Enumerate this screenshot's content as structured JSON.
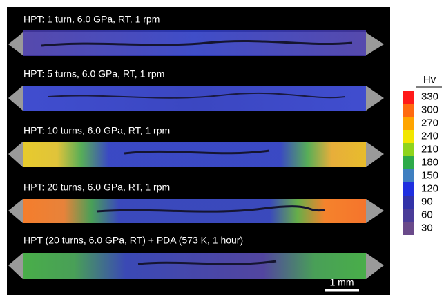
{
  "panels": [
    {
      "label": "HPT: 1 turn, 6.0 GPa, RT, 1 rpm"
    },
    {
      "label": "HPT: 5 turns, 6.0 GPa, RT, 1 rpm"
    },
    {
      "label": "HPT: 10 turns, 6.0 GPa, RT, 1 rpm"
    },
    {
      "label": "HPT: 20 turns, 6.0 GPa, RT, 1 rpm"
    },
    {
      "label": "HPT (20 turns, 6.0 GPa, RT) + PDA (573 K, 1 hour)"
    }
  ],
  "scale_bar": "1 mm",
  "legend": {
    "title": "Hv",
    "items": [
      {
        "value": 330,
        "color": "#ff1a1a"
      },
      {
        "value": 300,
        "color": "#ff6a10"
      },
      {
        "value": 270,
        "color": "#ffa500"
      },
      {
        "value": 240,
        "color": "#f2e600"
      },
      {
        "value": 210,
        "color": "#8fd41c"
      },
      {
        "value": 180,
        "color": "#2eaa4a"
      },
      {
        "value": 150,
        "color": "#3f7fc0"
      },
      {
        "value": 120,
        "color": "#1f2fe0"
      },
      {
        "value": 90,
        "color": "#3232a8"
      },
      {
        "value": 60,
        "color": "#4a3c98"
      },
      {
        "value": 30,
        "color": "#6a4a8a"
      }
    ]
  }
}
